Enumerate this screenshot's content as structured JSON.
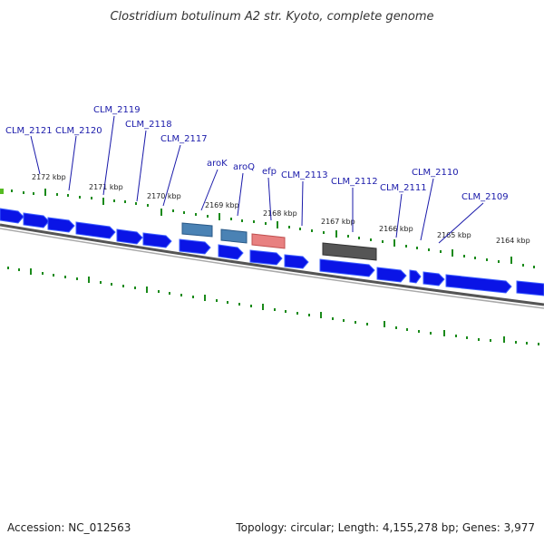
{
  "title": "Clostridium botulinum A2 str. Kyoto, complete genome",
  "accession": "Accession: NC_012563",
  "summary": "Topology: circular; Length: 4,155,278 bp; Genes: 3,977",
  "scale_labels": [
    "2172 kbp",
    "2171 kbp",
    "2170 kbp",
    "2169 kbp",
    "2168 kbp",
    "2167 kbp",
    "2166 kbp",
    "2165 kbp",
    "2164 kbp"
  ],
  "gene_labels": [
    "CLM_2121",
    "CLM_2120",
    "CLM_2119",
    "CLM_2118",
    "CLM_2117",
    "aroK",
    "aroQ",
    "efp",
    "CLM_2113",
    "CLM_2112",
    "CLM_2111",
    "CLM_2110",
    "CLM_2109"
  ],
  "colors": {
    "cds": "#0a14e6",
    "cds_shadow": "#3a5cff",
    "aroK": "#4a82b4",
    "aroQ": "#4a82b4",
    "efp": "#e88080",
    "pseudo": "#555555",
    "tick": "#1a8a1a",
    "backbone": "#7a7a7a",
    "label": "#1a1aaa"
  }
}
